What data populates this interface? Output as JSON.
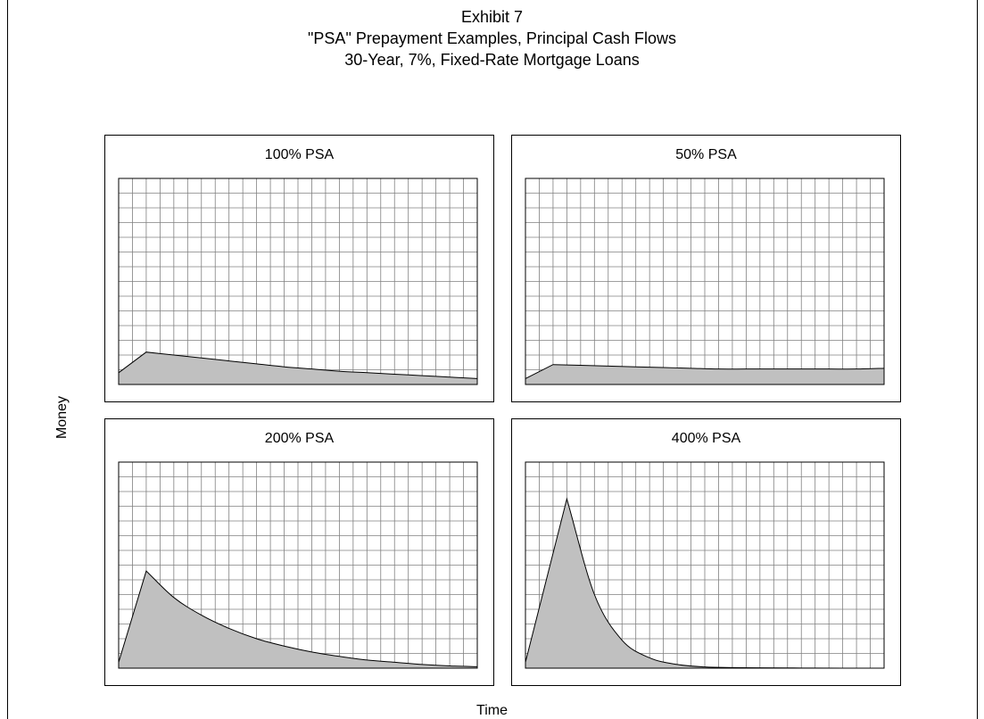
{
  "title_lines": [
    "Exhibit 7",
    "\"PSA\" Prepayment Examples, Principal Cash Flows",
    "30-Year, 7%, Fixed-Rate Mortgage Loans"
  ],
  "axis": {
    "xlabel": "Time",
    "ylabel": "Money"
  },
  "colors": {
    "fill": "#c0c0c0",
    "grid": "#808080",
    "line": "#000000"
  },
  "chart_data": [
    {
      "type": "area",
      "title": "100% PSA",
      "xlabel": "Time",
      "ylabel": "Money",
      "grid": true,
      "x": [
        0,
        2,
        4,
        6,
        8,
        10,
        12,
        14,
        16,
        18,
        20,
        22,
        24,
        26
      ],
      "values": [
        0.8,
        2.2,
        2.0,
        1.8,
        1.6,
        1.4,
        1.2,
        1.05,
        0.9,
        0.8,
        0.7,
        0.6,
        0.5,
        0.4
      ]
    },
    {
      "type": "area",
      "title": "50% PSA",
      "xlabel": "Time",
      "ylabel": "Money",
      "grid": true,
      "x": [
        0,
        2,
        4,
        6,
        8,
        10,
        12,
        14,
        16,
        18,
        20,
        22,
        24,
        26
      ],
      "values": [
        0.4,
        1.35,
        1.3,
        1.25,
        1.2,
        1.15,
        1.1,
        1.05,
        1.05,
        1.05,
        1.05,
        1.05,
        1.05,
        1.1
      ]
    },
    {
      "type": "area",
      "title": "200% PSA",
      "xlabel": "Time",
      "ylabel": "Money",
      "grid": true,
      "x": [
        0,
        2,
        4,
        6,
        8,
        10,
        12,
        14,
        16,
        18,
        20,
        22,
        24,
        26
      ],
      "values": [
        0.4,
        6.6,
        4.8,
        3.6,
        2.7,
        2.0,
        1.5,
        1.1,
        0.8,
        0.55,
        0.4,
        0.25,
        0.15,
        0.1
      ]
    },
    {
      "type": "area",
      "title": "400% PSA",
      "xlabel": "Time",
      "ylabel": "Money",
      "grid": true,
      "x": [
        0,
        3,
        5,
        7,
        9,
        11,
        13,
        15,
        17,
        20,
        23,
        26
      ],
      "values": [
        0.4,
        11.5,
        5.0,
        1.9,
        0.7,
        0.25,
        0.08,
        0.04,
        0.02,
        0.01,
        0.0,
        0.0
      ]
    }
  ]
}
